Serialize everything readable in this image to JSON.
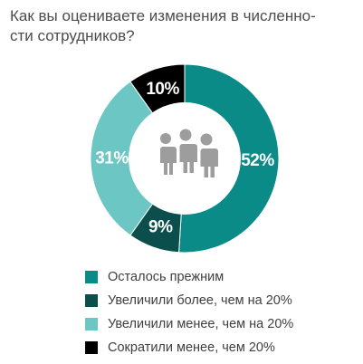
{
  "chart_data": {
    "type": "pie",
    "title_lines": [
      "Как вы оцениваете изменения в численно-",
      "сти сотрудников?"
    ],
    "categories": [
      "Осталось прежним",
      "Увеличили более, чем на 20%",
      "Увеличили менее, чем на 20%",
      "Сократили менее, чем 20%"
    ],
    "values": [
      52,
      9,
      31,
      10
    ],
    "value_labels": [
      "52%",
      "9%",
      "31%",
      "10%"
    ],
    "colors": [
      "#0b8b87",
      "#0b4e4b",
      "#6cc6c3",
      "#000000"
    ],
    "center_icon": "people-icon",
    "center_icon_color": "#9d9d9d",
    "legend_position": "bottom"
  }
}
